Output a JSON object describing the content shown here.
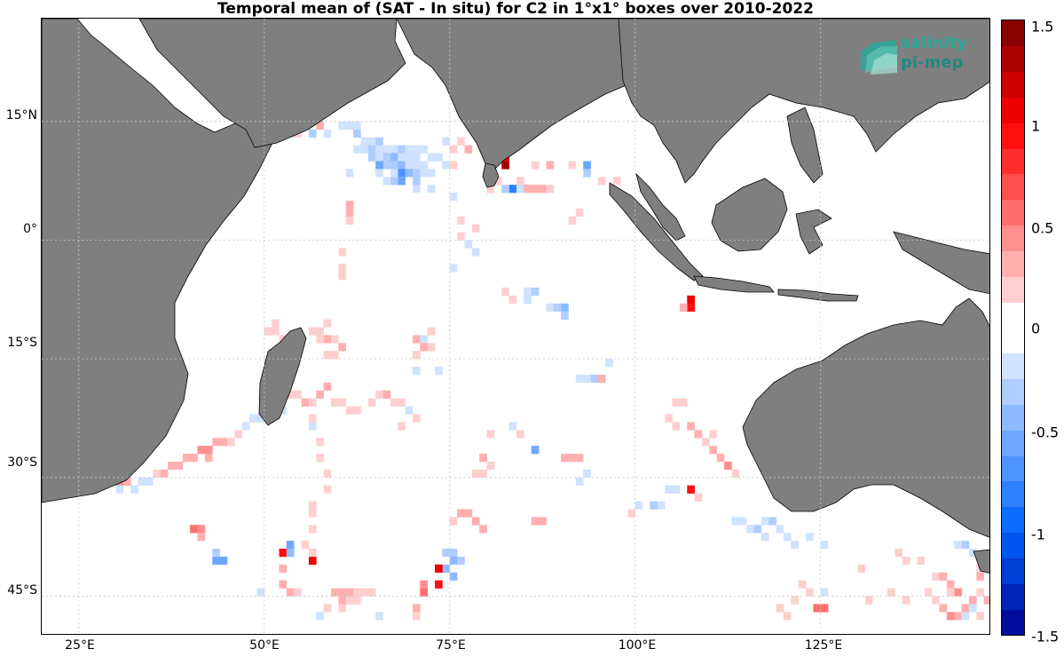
{
  "title": "Temporal mean of (SAT - In situ) for C2 in 1°x1° boxes over 2010-2022",
  "logo": {
    "line1": "salinity",
    "line2": "pi-mep"
  },
  "lat_labels": [
    "15°N",
    "0°",
    "15°S",
    "30°S",
    "45°S"
  ],
  "lon_labels": [
    "25°E",
    "50°E",
    "75°E",
    "100°E",
    "125°E"
  ],
  "colorbar": {
    "labels": [
      "1.5",
      "1",
      "0.5",
      "0",
      "-0.5",
      "-1",
      "-1.5"
    ],
    "range": [
      -1.5,
      1.5
    ]
  },
  "colors": {
    "land": "#7f7f7f",
    "grid": "#c8c8c8"
  },
  "chart_data": {
    "type": "heatmap",
    "lon_range": [
      20,
      148
    ],
    "lat_range": [
      -50,
      28
    ],
    "cells": [
      [
        62,
        13,
        -0.3
      ],
      [
        63,
        12,
        -0.2
      ],
      [
        64,
        12,
        -0.25
      ],
      [
        65,
        12,
        -0.3
      ],
      [
        66,
        11,
        -0.2
      ],
      [
        67,
        11,
        -0.25
      ],
      [
        68,
        11,
        -0.3
      ],
      [
        69,
        11,
        -0.2
      ],
      [
        70,
        11,
        -0.2
      ],
      [
        71,
        11,
        -0.15
      ],
      [
        62,
        11,
        -0.2
      ],
      [
        63,
        11,
        -0.25
      ],
      [
        64,
        11,
        -0.3
      ],
      [
        65,
        11,
        -0.2
      ],
      [
        66,
        10,
        -0.3
      ],
      [
        67,
        10,
        -0.4
      ],
      [
        68,
        10,
        -0.25
      ],
      [
        69,
        10,
        -0.2
      ],
      [
        70,
        10,
        -0.15
      ],
      [
        72,
        10,
        -0.2
      ],
      [
        64,
        10,
        -0.3
      ],
      [
        65,
        10,
        -0.25
      ],
      [
        66,
        9,
        -0.35
      ],
      [
        67,
        9,
        -0.3
      ],
      [
        68,
        9,
        -0.4
      ],
      [
        69,
        9,
        -0.25
      ],
      [
        70,
        9,
        -0.2
      ],
      [
        71,
        9,
        -0.15
      ],
      [
        73,
        10,
        -0.15
      ],
      [
        74,
        9,
        -0.2
      ],
      [
        65,
        9,
        -0.6
      ],
      [
        68,
        8,
        -0.7
      ],
      [
        68,
        7,
        -0.6
      ],
      [
        69,
        8,
        -0.4
      ],
      [
        70,
        8,
        -0.3
      ],
      [
        71,
        8,
        -0.25
      ],
      [
        72,
        8,
        -0.2
      ],
      [
        67,
        7,
        -0.3
      ],
      [
        70,
        7,
        -0.3
      ],
      [
        70,
        6,
        -0.25
      ],
      [
        72,
        6,
        -0.2
      ],
      [
        61,
        14,
        -0.2
      ],
      [
        62,
        14,
        -0.25
      ],
      [
        60,
        14,
        -0.15
      ],
      [
        58,
        13,
        -0.2
      ],
      [
        56,
        13,
        -0.3
      ],
      [
        53,
        13,
        -0.2
      ],
      [
        52,
        14,
        -0.15
      ],
      [
        54,
        13,
        0.2
      ],
      [
        57,
        14,
        0.25
      ],
      [
        66,
        7,
        -0.2
      ],
      [
        65,
        8,
        -0.2
      ],
      [
        67,
        8,
        -0.2
      ],
      [
        75,
        9,
        0.15
      ],
      [
        76,
        12,
        0.2
      ],
      [
        77,
        11,
        0.3
      ],
      [
        75,
        11,
        0.2
      ],
      [
        74,
        12,
        -0.15
      ],
      [
        82,
        9,
        1.3
      ],
      [
        82,
        10,
        1.1
      ],
      [
        83,
        6,
        -0.8
      ],
      [
        82,
        6,
        -0.3
      ],
      [
        84,
        6,
        -0.2
      ],
      [
        85,
        6,
        0.25
      ],
      [
        86,
        6,
        0.3
      ],
      [
        87,
        6,
        0.3
      ],
      [
        88,
        6,
        0.2
      ],
      [
        84,
        7,
        0.2
      ],
      [
        81,
        7,
        0.2
      ],
      [
        80,
        8,
        0.2
      ],
      [
        80,
        6,
        0.15
      ],
      [
        86,
        9,
        0.2
      ],
      [
        88,
        9,
        0.3
      ],
      [
        91,
        9,
        0.15
      ],
      [
        93,
        9,
        -0.6
      ],
      [
        93,
        8,
        -0.3
      ],
      [
        95,
        7,
        0.2
      ],
      [
        97,
        7,
        0.2
      ],
      [
        92,
        3,
        0.2
      ],
      [
        91,
        2,
        0.15
      ],
      [
        75,
        5,
        -0.2
      ],
      [
        76,
        2,
        0.15
      ],
      [
        78,
        1,
        0.2
      ],
      [
        77,
        -1,
        -0.15
      ],
      [
        78,
        -2,
        -0.15
      ],
      [
        76,
        0,
        0.15
      ],
      [
        75,
        -4,
        -0.2
      ],
      [
        61,
        4,
        0.3
      ],
      [
        61,
        3,
        0.3
      ],
      [
        61,
        2,
        0.2
      ],
      [
        60,
        -2,
        0.2
      ],
      [
        60,
        -4,
        0.2
      ],
      [
        60,
        -5,
        0.2
      ],
      [
        61,
        8,
        -0.15
      ],
      [
        82,
        -7,
        0.2
      ],
      [
        83,
        -8,
        0.2
      ],
      [
        85,
        -7,
        -0.2
      ],
      [
        86,
        -7,
        -0.3
      ],
      [
        85,
        -8,
        -0.15
      ],
      [
        88,
        -9,
        -0.2
      ],
      [
        89,
        -9,
        -0.3
      ],
      [
        90,
        -9,
        -0.4
      ],
      [
        90,
        -10,
        -0.35
      ],
      [
        107,
        -8,
        1.1
      ],
      [
        107,
        -9,
        0.9
      ],
      [
        106,
        -9,
        0.3
      ],
      [
        56,
        -12,
        0.2
      ],
      [
        57,
        -12,
        0.2
      ],
      [
        58,
        -11,
        0.2
      ],
      [
        58,
        -13,
        0.3
      ],
      [
        59,
        -13,
        0.2
      ],
      [
        57,
        -13,
        0.15
      ],
      [
        60,
        -14,
        0.25
      ],
      [
        59,
        -15,
        0.2
      ],
      [
        58,
        -15,
        0.2
      ],
      [
        70,
        -13,
        0.25
      ],
      [
        71,
        -13,
        -0.25
      ],
      [
        71,
        -14,
        0.35
      ],
      [
        72,
        -14,
        0.2
      ],
      [
        72,
        -12,
        0.2
      ],
      [
        70,
        -15,
        0.2
      ],
      [
        70,
        -17,
        -0.2
      ],
      [
        73,
        -17,
        -0.15
      ],
      [
        92,
        -18,
        -0.25
      ],
      [
        93,
        -18,
        -0.25
      ],
      [
        94,
        -18,
        -0.3
      ],
      [
        95,
        -18,
        0.25
      ],
      [
        96,
        -16,
        -0.2
      ],
      [
        105,
        -21,
        0.2
      ],
      [
        106,
        -21,
        0.2
      ],
      [
        104,
        -23,
        0.2
      ],
      [
        105,
        -24,
        0.2
      ],
      [
        107,
        -24,
        0.25
      ],
      [
        108,
        -25,
        0.3
      ],
      [
        109,
        -26,
        0.2
      ],
      [
        110,
        -27,
        0.3
      ],
      [
        112,
        -29,
        0.4
      ],
      [
        113,
        -30,
        0.2
      ],
      [
        110,
        -25,
        0.2
      ],
      [
        111,
        -28,
        0.3
      ],
      [
        107,
        -32,
        0.9
      ],
      [
        108,
        -33,
        0.2
      ],
      [
        104,
        -32,
        -0.2
      ],
      [
        105,
        -32,
        -0.2
      ],
      [
        102,
        -34,
        -0.3
      ],
      [
        103,
        -34,
        -0.2
      ],
      [
        100,
        -34,
        -0.2
      ],
      [
        99,
        -35,
        0.15
      ],
      [
        90,
        -28,
        0.3
      ],
      [
        91,
        -28,
        0.3
      ],
      [
        92,
        -28,
        0.3
      ],
      [
        92,
        -31,
        -0.2
      ],
      [
        93,
        -30,
        -0.25
      ],
      [
        86,
        -27,
        -0.6
      ],
      [
        84,
        -25,
        0.2
      ],
      [
        83,
        -24,
        -0.2
      ],
      [
        80,
        -25,
        0.2
      ],
      [
        79,
        -28,
        0.25
      ],
      [
        78,
        -30,
        0.2
      ],
      [
        79,
        -30,
        0.2
      ],
      [
        80,
        -29,
        0.2
      ],
      [
        77,
        -35,
        0.3
      ],
      [
        78,
        -36,
        0.35
      ],
      [
        79,
        -37,
        0.3
      ],
      [
        75,
        -36,
        0.2
      ],
      [
        76,
        -35,
        0.25
      ],
      [
        86,
        -36,
        0.3
      ],
      [
        87,
        -36,
        0.3
      ],
      [
        74,
        -40,
        -0.3
      ],
      [
        75,
        -40,
        -0.3
      ],
      [
        75,
        -41,
        -0.4
      ],
      [
        76,
        -41,
        -0.3
      ],
      [
        74,
        -42,
        -0.5
      ],
      [
        75,
        -43,
        -0.4
      ],
      [
        73,
        -42,
        1.0
      ],
      [
        73,
        -44,
        0.9
      ],
      [
        71,
        -45,
        0.5
      ],
      [
        71,
        -44,
        0.4
      ],
      [
        70,
        -47,
        0.3
      ],
      [
        70,
        -48,
        0.2
      ],
      [
        52,
        -40,
        0.9
      ],
      [
        53,
        -39,
        -0.6
      ],
      [
        53,
        -40,
        -0.4
      ],
      [
        52,
        -42,
        0.3
      ],
      [
        56,
        -41,
        1.0
      ],
      [
        56,
        -40,
        0.2
      ],
      [
        55,
        -39,
        0.2
      ],
      [
        43,
        -41,
        -0.6
      ],
      [
        44,
        -41,
        -0.6
      ],
      [
        43,
        -40,
        -0.3
      ],
      [
        40,
        -37,
        0.5
      ],
      [
        41,
        -37,
        0.4
      ],
      [
        41,
        -38,
        0.3
      ],
      [
        59,
        -45,
        0.3
      ],
      [
        60,
        -45,
        0.3
      ],
      [
        61,
        -45,
        0.3
      ],
      [
        62,
        -45,
        0.2
      ],
      [
        60,
        -46,
        0.25
      ],
      [
        60,
        -47,
        0.2
      ],
      [
        62,
        -46,
        0.2
      ],
      [
        63,
        -45,
        0.2
      ],
      [
        64,
        -45,
        0.2
      ],
      [
        61,
        -46,
        0.2
      ],
      [
        52,
        -44,
        0.3
      ],
      [
        53,
        -45,
        0.25
      ],
      [
        54,
        -45,
        0.2
      ],
      [
        49,
        -45,
        -0.2
      ],
      [
        57,
        -48,
        -0.2
      ],
      [
        65,
        -48,
        -0.2
      ],
      [
        58,
        -47,
        0.2
      ],
      [
        30,
        -31,
        0.4
      ],
      [
        30,
        -32,
        -0.2
      ],
      [
        31,
        -31,
        0.3
      ],
      [
        32,
        -32,
        -0.15
      ],
      [
        33,
        -31,
        -0.2
      ],
      [
        34,
        -31,
        -0.2
      ],
      [
        35,
        -30,
        0.2
      ],
      [
        36,
        -30,
        0.3
      ],
      [
        37,
        -29,
        0.3
      ],
      [
        38,
        -29,
        0.3
      ],
      [
        39,
        -28,
        0.25
      ],
      [
        40,
        -28,
        0.3
      ],
      [
        41,
        -27,
        0.4
      ],
      [
        42,
        -27,
        0.4
      ],
      [
        42,
        -28,
        0.3
      ],
      [
        43,
        -26,
        0.25
      ],
      [
        44,
        -26,
        0.3
      ],
      [
        45,
        -26,
        0.2
      ],
      [
        46,
        -25,
        0.2
      ],
      [
        48,
        -23,
        -0.2
      ],
      [
        49,
        -23,
        -0.15
      ],
      [
        50,
        -22,
        -0.25
      ],
      [
        51,
        -22,
        -0.25
      ],
      [
        52,
        -22,
        -0.2
      ],
      [
        47,
        -24,
        -0.15
      ],
      [
        53,
        -20,
        0.2
      ],
      [
        54,
        -20,
        0.2
      ],
      [
        55,
        -21,
        0.25
      ],
      [
        56,
        -21,
        0.2
      ],
      [
        57,
        -20,
        0.3
      ],
      [
        58,
        -19,
        0.3
      ],
      [
        59,
        -21,
        0.2
      ],
      [
        60,
        -21,
        0.2
      ],
      [
        61,
        -22,
        0.2
      ],
      [
        62,
        -22,
        0.15
      ],
      [
        65,
        -20,
        0.2
      ],
      [
        66,
        -20,
        0.25
      ],
      [
        67,
        -21,
        0.2
      ],
      [
        64,
        -21,
        0.2
      ],
      [
        68,
        -21,
        0.15
      ],
      [
        69,
        -22,
        -0.2
      ],
      [
        70,
        -23,
        0.2
      ],
      [
        68,
        -24,
        0.15
      ],
      [
        50,
        -12,
        0.15
      ],
      [
        51,
        -12,
        0.2
      ],
      [
        51,
        -11,
        0.2
      ],
      [
        52,
        -13,
        0.2
      ],
      [
        52,
        -15,
        0.2
      ],
      [
        52,
        -16,
        0.15
      ],
      [
        50,
        -16,
        0.2
      ],
      [
        52,
        -18,
        0.2
      ],
      [
        53,
        -20,
        0.2
      ],
      [
        56,
        -23,
        0.2
      ],
      [
        56,
        -24,
        -0.2
      ],
      [
        57,
        -26,
        0.2
      ],
      [
        57,
        -28,
        0.2
      ],
      [
        58,
        -30,
        0.2
      ],
      [
        58,
        -32,
        0.15
      ],
      [
        56,
        -34,
        0.2
      ],
      [
        56,
        -35,
        0.2
      ],
      [
        56,
        -37,
        0.2
      ],
      [
        36,
        -20,
        -0.15
      ],
      [
        37,
        -21,
        -0.2
      ],
      [
        34,
        -23,
        -0.15
      ],
      [
        33,
        -22,
        -0.2
      ],
      [
        35,
        -24,
        -0.2
      ],
      [
        113,
        -36,
        -0.2
      ],
      [
        114,
        -36,
        -0.2
      ],
      [
        115,
        -37,
        -0.2
      ],
      [
        116,
        -37,
        -0.3
      ],
      [
        117,
        -36,
        -0.2
      ],
      [
        118,
        -36,
        -0.3
      ],
      [
        119,
        -37,
        -0.2
      ],
      [
        117,
        -38,
        -0.2
      ],
      [
        120,
        -38,
        -0.2
      ],
      [
        121,
        -39,
        -0.25
      ],
      [
        123,
        -38,
        -0.2
      ],
      [
        125,
        -39,
        -0.15
      ],
      [
        122,
        -44,
        0.2
      ],
      [
        123,
        -45,
        0.2
      ],
      [
        124,
        -47,
        0.5
      ],
      [
        125,
        -47,
        0.5
      ],
      [
        125,
        -45,
        -0.2
      ],
      [
        130,
        -42,
        0.2
      ],
      [
        135,
        -40,
        0.2
      ],
      [
        136,
        -41,
        0.15
      ],
      [
        138,
        -41,
        0.2
      ],
      [
        140,
        -43,
        0.2
      ],
      [
        141,
        -43,
        0.25
      ],
      [
        142,
        -44,
        0.3
      ],
      [
        143,
        -45,
        0.4
      ],
      [
        142,
        -45,
        0.2
      ],
      [
        143,
        -39,
        -0.2
      ],
      [
        144,
        -39,
        -0.3
      ],
      [
        145,
        -40,
        -0.2
      ],
      [
        146,
        -42,
        0.2
      ],
      [
        146,
        -43,
        0.3
      ],
      [
        146,
        -45,
        0.2
      ],
      [
        145,
        -46,
        0.25
      ],
      [
        144,
        -47,
        0.3
      ],
      [
        143,
        -48,
        0.3
      ],
      [
        142,
        -48,
        0.4
      ],
      [
        141,
        -47,
        0.3
      ],
      [
        144,
        -48,
        -0.2
      ],
      [
        145,
        -47,
        -0.2
      ],
      [
        146,
        -48,
        0.2
      ],
      [
        147,
        -46,
        0.3
      ],
      [
        140,
        -46,
        0.2
      ],
      [
        139,
        -45,
        0.2
      ],
      [
        136,
        -46,
        0.2
      ],
      [
        134,
        -45,
        0.15
      ],
      [
        131,
        -46,
        0.2
      ],
      [
        121,
        -46,
        0.2
      ],
      [
        119,
        -47,
        0.15
      ],
      [
        120,
        -48,
        0.15
      ]
    ]
  }
}
